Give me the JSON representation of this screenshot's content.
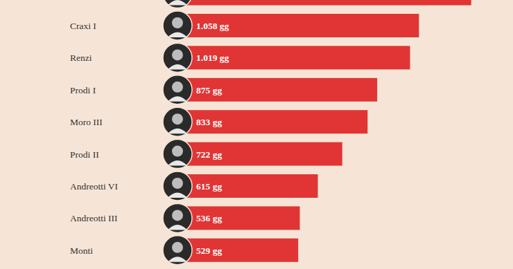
{
  "chart_data": {
    "type": "bar",
    "orientation": "horizontal",
    "categories": [
      null,
      "Craxi I",
      "Renzi",
      "Prodi I",
      "Moro III",
      "Prodi II",
      "Andreotti VI",
      "Andreotti III",
      "Monti"
    ],
    "values": [
      1287,
      1058,
      1019,
      875,
      833,
      722,
      615,
      536,
      529
    ],
    "value_labels": [
      null,
      "1.058 gg",
      "1.019 gg",
      "875 gg",
      "833 gg",
      "722 gg",
      "615 gg",
      "536 gg",
      "529 gg"
    ],
    "color": "#e03534",
    "xlim": [
      0,
      1300
    ],
    "data_labels": true,
    "tick_labels": "y",
    "grid": false
  }
}
